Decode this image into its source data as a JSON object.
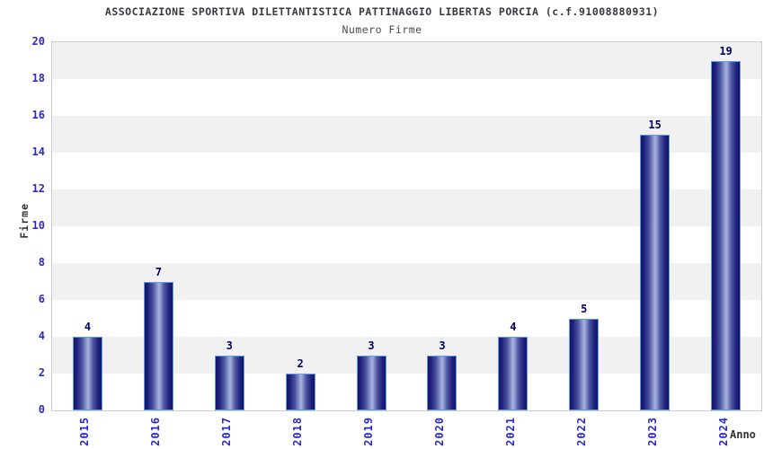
{
  "chart_data": {
    "type": "bar",
    "title": "ASSOCIAZIONE SPORTIVA DILETTANTISTICA PATTINAGGIO LIBERTAS PORCIA (c.f.91008880931)",
    "subtitle": "Numero Firme",
    "xlabel": "Anno",
    "ylabel": "Firme",
    "categories": [
      "2015",
      "2016",
      "2017",
      "2018",
      "2019",
      "2020",
      "2021",
      "2022",
      "2023",
      "2024"
    ],
    "values": [
      4,
      7,
      3,
      2,
      3,
      3,
      4,
      5,
      15,
      19
    ],
    "ylim": [
      0,
      20
    ],
    "ytick_step": 2,
    "yticks": [
      0,
      2,
      4,
      6,
      8,
      10,
      12,
      14,
      16,
      18,
      20
    ],
    "grid": "alternating-horizontal-bands",
    "legend": "none",
    "colors": {
      "bar_edge_dark": "#14146a",
      "bar_center_light": "#a9b3de",
      "bar_border": "#5f9de2",
      "axis_tick_label": "#2929cc",
      "value_label": "#000066",
      "band_gray": "#f1f1f1",
      "band_white": "#ffffff",
      "plot_border": "#cccccc",
      "title_text": "#38383f",
      "subtitle_text": "#4a4a4a",
      "axis_title_text": "#333333"
    }
  }
}
